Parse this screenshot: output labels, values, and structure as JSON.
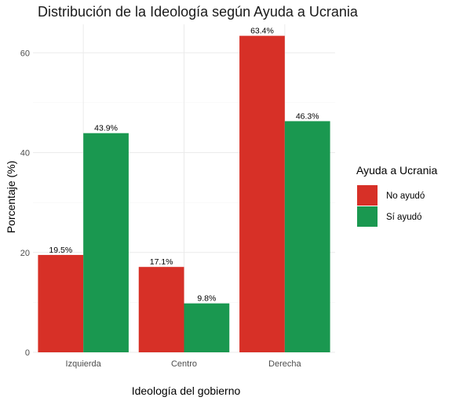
{
  "chart_data": {
    "type": "bar",
    "title": "Distribución de la Ideología según Ayuda a Ucrania",
    "xlabel": "Ideología del gobierno",
    "ylabel": "Porcentaje (%)",
    "categories": [
      "Izquierda",
      "Centro",
      "Derecha"
    ],
    "series": [
      {
        "name": "No ayudó",
        "color": "#d73027",
        "values": [
          19.5,
          17.1,
          63.4
        ],
        "labels": [
          "19.5%",
          "17.1%",
          "63.4%"
        ]
      },
      {
        "name": "Sí ayudó",
        "color": "#1a9850",
        "values": [
          43.9,
          9.8,
          46.3
        ],
        "labels": [
          "43.9%",
          "9.8%",
          "46.3%"
        ]
      }
    ],
    "ylim": [
      0,
      65.7
    ],
    "yticks": [
      0,
      20,
      40,
      60
    ],
    "ytick_labels": [
      "0",
      "20",
      "40",
      "60"
    ],
    "grid": true,
    "legend": {
      "title": "Ayuda a Ucrania",
      "position": "right"
    }
  }
}
